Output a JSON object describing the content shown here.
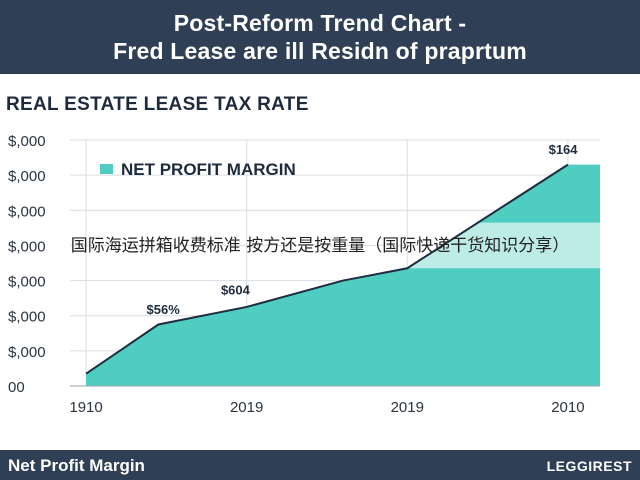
{
  "header": {
    "line1": "Post-Reform Trend Chart -",
    "line2": "Fred Lease are ill Residn of praprtum"
  },
  "subtitle": "REAL ESTATE LEASE TAX RATE",
  "watermark": "国际海运拼箱收费标准 按方还是按重量（国际快递干货知识分享）",
  "footer": {
    "left": "Net Profit Margin",
    "right": "LEGGIREST"
  },
  "colors": {
    "header_bg": "#2f4056",
    "area_fill": "#4fcdc0",
    "area_light": "#c9efea",
    "line": "#1e2d3f",
    "grid": "#d9dee3"
  },
  "chart_data": {
    "type": "area",
    "legend": {
      "label": "NET PROFIT MARGIN",
      "position": "top-left"
    },
    "y_tick_labels": [
      "$,000",
      "$,000",
      "$,000",
      "$,000",
      "$,000",
      "$,000",
      "$,000",
      "00"
    ],
    "x_tick_labels": [
      "1910",
      "2019",
      "2019",
      "2010"
    ],
    "x_tick_positions": [
      0,
      1,
      2,
      3
    ],
    "ylim": [
      0,
      7
    ],
    "xlim": [
      -0.1,
      3.2
    ],
    "series": [
      {
        "points": [
          {
            "x": 0.0,
            "y": 0.35
          },
          {
            "x": 0.45,
            "y": 1.75
          },
          {
            "x": 1.0,
            "y": 2.25
          },
          {
            "x": 1.6,
            "y": 3.0
          },
          {
            "x": 2.0,
            "y": 3.35
          },
          {
            "x": 3.0,
            "y": 6.3
          }
        ]
      }
    ],
    "fill_end_x": 3.2,
    "annotations": [
      {
        "text": "$56%",
        "x": 0.48,
        "y": 2.05
      },
      {
        "text": "$604",
        "x": 0.93,
        "y": 2.6
      },
      {
        "text": "$164",
        "x": 2.97,
        "y": 6.6
      }
    ]
  }
}
